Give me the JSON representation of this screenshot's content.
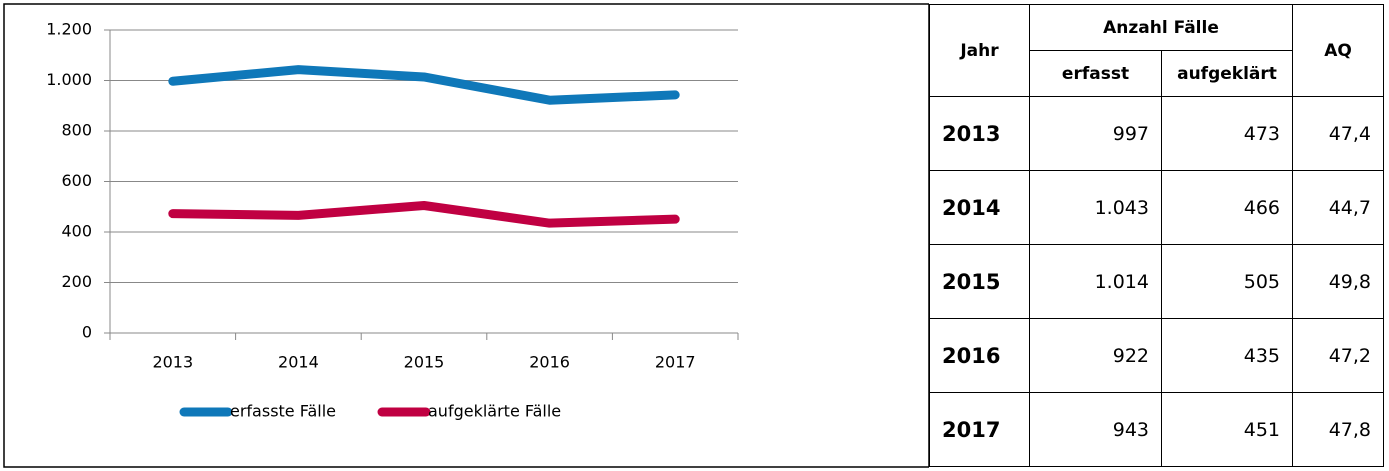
{
  "chart_data": {
    "type": "line",
    "categories": [
      "2013",
      "2014",
      "2015",
      "2016",
      "2017"
    ],
    "series": [
      {
        "name": "erfasste Fälle",
        "color": "#0f78b9",
        "values": [
          997,
          1043,
          1014,
          922,
          943
        ]
      },
      {
        "name": "aufgeklärte Fälle",
        "color": "#c00042",
        "values": [
          473,
          466,
          505,
          435,
          451
        ]
      }
    ],
    "ylim": [
      0,
      1200
    ],
    "yticks": [
      0,
      200,
      400,
      600,
      800,
      {
        "value": 1000,
        "label": "1.000"
      },
      {
        "value": 1200,
        "label": "1.200"
      }
    ],
    "grid": true,
    "legend": "bottom"
  },
  "table": {
    "header": {
      "year": "Jahr",
      "group": "Anzahl Fälle",
      "sub": [
        "erfasst",
        "aufgeklärt"
      ],
      "rate": "AQ"
    },
    "rows": [
      [
        "2013",
        "997",
        "473",
        "47,4"
      ],
      [
        "2014",
        "1.043",
        "466",
        "44,7"
      ],
      [
        "2015",
        "1.014",
        "505",
        "49,8"
      ],
      [
        "2016",
        "922",
        "435",
        "47,2"
      ],
      [
        "2017",
        "943",
        "451",
        "47,8"
      ]
    ]
  }
}
